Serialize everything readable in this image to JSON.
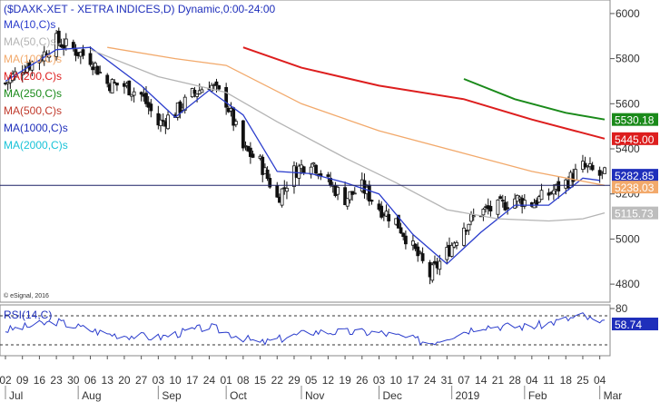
{
  "chart_data": [
    {
      "type": "candlestick",
      "title": "($DAXK-XET - XETRA INDICES,D) Dynamic,0:00-24:00",
      "copyright": "© eSignal, 2016",
      "ylim": [
        4720,
        6060
      ],
      "yticks": [
        4800,
        5000,
        5200,
        5400,
        5600,
        5800,
        6000
      ],
      "xlim": [
        "2018-07-02",
        "2019-03-06"
      ],
      "x_tick_labels": [
        "02",
        "09",
        "16",
        "23",
        "30",
        "06",
        "13",
        "20",
        "27",
        "03",
        "10",
        "17",
        "24",
        "01",
        "08",
        "15",
        "22",
        "29",
        "05",
        "12",
        "19",
        "26",
        "03",
        "10",
        "17",
        "24",
        "31",
        "07",
        "14",
        "21",
        "28",
        "04",
        "11",
        "18",
        "25",
        "04"
      ],
      "x_tick_dates": [
        "2018-07-02",
        "2018-07-09",
        "2018-07-16",
        "2018-07-23",
        "2018-07-30",
        "2018-08-06",
        "2018-08-13",
        "2018-08-20",
        "2018-08-27",
        "2018-09-03",
        "2018-09-10",
        "2018-09-17",
        "2018-09-24",
        "2018-10-01",
        "2018-10-08",
        "2018-10-15",
        "2018-10-22",
        "2018-10-29",
        "2018-11-05",
        "2018-11-12",
        "2018-11-19",
        "2018-11-26",
        "2018-12-03",
        "2018-12-10",
        "2018-12-17",
        "2018-12-24",
        "2018-12-31",
        "2019-01-07",
        "2019-01-14",
        "2019-01-21",
        "2019-01-28",
        "2019-02-04",
        "2019-02-11",
        "2019-02-18",
        "2019-02-25",
        "2019-03-04"
      ],
      "month_labels": [
        {
          "label": "Jul",
          "date": "2018-07-02"
        },
        {
          "label": "Aug",
          "date": "2018-08-01"
        },
        {
          "label": "Sep",
          "date": "2018-09-03"
        },
        {
          "label": "Oct",
          "date": "2018-10-01"
        },
        {
          "label": "Nov",
          "date": "2018-11-01"
        },
        {
          "label": "Dec",
          "date": "2018-12-03"
        },
        {
          "label": "2019",
          "date": "2019-01-02"
        },
        {
          "label": "Feb",
          "date": "2019-02-01"
        },
        {
          "label": "Mar",
          "date": "2019-03-04"
        }
      ],
      "weekly_close_path": [
        {
          "date": "2018-07-02",
          "value": 5690
        },
        {
          "date": "2018-07-09",
          "value": 5760
        },
        {
          "date": "2018-07-16",
          "value": 5800
        },
        {
          "date": "2018-07-23",
          "value": 5880
        },
        {
          "date": "2018-07-30",
          "value": 5840
        },
        {
          "date": "2018-08-06",
          "value": 5800
        },
        {
          "date": "2018-08-13",
          "value": 5690
        },
        {
          "date": "2018-08-20",
          "value": 5680
        },
        {
          "date": "2018-08-27",
          "value": 5640
        },
        {
          "date": "2018-09-03",
          "value": 5510
        },
        {
          "date": "2018-09-10",
          "value": 5560
        },
        {
          "date": "2018-09-17",
          "value": 5640
        },
        {
          "date": "2018-09-24",
          "value": 5690
        },
        {
          "date": "2018-10-01",
          "value": 5610
        },
        {
          "date": "2018-10-08",
          "value": 5400
        },
        {
          "date": "2018-10-15",
          "value": 5340
        },
        {
          "date": "2018-10-22",
          "value": 5180
        },
        {
          "date": "2018-10-29",
          "value": 5300
        },
        {
          "date": "2018-11-05",
          "value": 5350
        },
        {
          "date": "2018-11-12",
          "value": 5250
        },
        {
          "date": "2018-11-19",
          "value": 5180
        },
        {
          "date": "2018-11-26",
          "value": 5230
        },
        {
          "date": "2018-12-03",
          "value": 5140
        },
        {
          "date": "2018-12-10",
          "value": 5080
        },
        {
          "date": "2018-12-17",
          "value": 4960
        },
        {
          "date": "2018-12-24",
          "value": 4840
        },
        {
          "date": "2018-12-31",
          "value": 4940
        },
        {
          "date": "2019-01-07",
          "value": 5060
        },
        {
          "date": "2019-01-14",
          "value": 5120
        },
        {
          "date": "2019-01-21",
          "value": 5140
        },
        {
          "date": "2019-01-28",
          "value": 5180
        },
        {
          "date": "2019-02-04",
          "value": 5160
        },
        {
          "date": "2019-02-11",
          "value": 5200
        },
        {
          "date": "2019-02-18",
          "value": 5250
        },
        {
          "date": "2019-02-25",
          "value": 5320
        },
        {
          "date": "2019-03-04",
          "value": 5283
        }
      ],
      "series": [
        {
          "name": "MA(10,C)s",
          "color": "#2a3ccc",
          "points": [
            {
              "date": "2018-07-02",
              "value": 5700
            },
            {
              "date": "2018-07-23",
              "value": 5840
            },
            {
              "date": "2018-08-06",
              "value": 5850
            },
            {
              "date": "2018-08-27",
              "value": 5680
            },
            {
              "date": "2018-09-10",
              "value": 5540
            },
            {
              "date": "2018-09-24",
              "value": 5660
            },
            {
              "date": "2018-10-08",
              "value": 5550
            },
            {
              "date": "2018-10-22",
              "value": 5300
            },
            {
              "date": "2018-11-05",
              "value": 5290
            },
            {
              "date": "2018-11-19",
              "value": 5250
            },
            {
              "date": "2018-12-03",
              "value": 5200
            },
            {
              "date": "2018-12-17",
              "value": 5020
            },
            {
              "date": "2018-12-31",
              "value": 4890
            },
            {
              "date": "2019-01-14",
              "value": 5030
            },
            {
              "date": "2019-01-28",
              "value": 5150
            },
            {
              "date": "2019-02-11",
              "value": 5150
            },
            {
              "date": "2019-02-25",
              "value": 5270
            },
            {
              "date": "2019-03-04",
              "value": 5260
            }
          ]
        },
        {
          "name": "MA(50,C)s",
          "color": "#b4b4b4",
          "points": [
            {
              "date": "2018-08-06",
              "value": 5840
            },
            {
              "date": "2018-09-03",
              "value": 5720
            },
            {
              "date": "2018-10-01",
              "value": 5650
            },
            {
              "date": "2018-10-22",
              "value": 5520
            },
            {
              "date": "2018-11-19",
              "value": 5360
            },
            {
              "date": "2018-12-10",
              "value": 5250
            },
            {
              "date": "2018-12-31",
              "value": 5130
            },
            {
              "date": "2019-01-21",
              "value": 5090
            },
            {
              "date": "2019-02-11",
              "value": 5080
            },
            {
              "date": "2019-02-25",
              "value": 5090
            },
            {
              "date": "2019-03-06",
              "value": 5116
            }
          ]
        },
        {
          "name": "MA(100,C)s",
          "color": "#f2a96b",
          "points": [
            {
              "date": "2018-08-13",
              "value": 5850
            },
            {
              "date": "2018-09-10",
              "value": 5800
            },
            {
              "date": "2018-10-01",
              "value": 5770
            },
            {
              "date": "2018-11-01",
              "value": 5600
            },
            {
              "date": "2018-12-03",
              "value": 5480
            },
            {
              "date": "2019-01-07",
              "value": 5380
            },
            {
              "date": "2019-02-04",
              "value": 5300
            },
            {
              "date": "2019-03-06",
              "value": 5238
            }
          ]
        },
        {
          "name": "MA(200,C)s",
          "color": "#dd1e1e",
          "points": [
            {
              "date": "2018-10-08",
              "value": 5850
            },
            {
              "date": "2018-11-01",
              "value": 5760
            },
            {
              "date": "2018-12-03",
              "value": 5680
            },
            {
              "date": "2019-01-07",
              "value": 5620
            },
            {
              "date": "2019-02-04",
              "value": 5530
            },
            {
              "date": "2019-03-06",
              "value": 5445
            }
          ]
        },
        {
          "name": "MA(250,C)s",
          "color": "#1a8a1a",
          "points": [
            {
              "date": "2019-01-07",
              "value": 5710
            },
            {
              "date": "2019-01-28",
              "value": 5620
            },
            {
              "date": "2019-02-18",
              "value": 5560
            },
            {
              "date": "2019-03-06",
              "value": 5530
            }
          ]
        },
        {
          "name": "MA(500,C)s",
          "color": "#c0392b",
          "points": []
        },
        {
          "name": "MA(1000,C)s",
          "color": "#1f2fbb",
          "points": []
        },
        {
          "name": "MA(2000,C)s",
          "color": "#19c3d8",
          "points": []
        }
      ],
      "hline": {
        "value": 5238,
        "color": "#1d2166"
      },
      "price_markers": [
        {
          "value": 5530.18,
          "label": "5530.18",
          "bg": "#1a8a1a",
          "fg": "#ffffff"
        },
        {
          "value": 5445.0,
          "label": "5445.00",
          "bg": "#dd1e1e",
          "fg": "#ffffff"
        },
        {
          "value": 5282.85,
          "label": "5282.85",
          "bg": "#1f2fbb",
          "fg": "#ffffff"
        },
        {
          "value": 5238.03,
          "label": "5238.03",
          "bg": "#f2a96b",
          "fg": "#ffffff"
        },
        {
          "value": 5115.73,
          "label": "5115.73",
          "bg": "#bdbdbd",
          "fg": "#ffffff"
        }
      ]
    },
    {
      "type": "line",
      "title": "RSI(14,C)",
      "ylim": [
        15,
        85
      ],
      "yticks": [
        80
      ],
      "reference_lines": [
        70,
        30
      ],
      "series": [
        {
          "name": "RSI(14,C)",
          "color": "#2a3ccc",
          "points": [
            {
              "date": "2018-07-02",
              "value": 50
            },
            {
              "date": "2018-07-23",
              "value": 62
            },
            {
              "date": "2018-08-13",
              "value": 45
            },
            {
              "date": "2018-09-03",
              "value": 40
            },
            {
              "date": "2018-09-24",
              "value": 55
            },
            {
              "date": "2018-10-15",
              "value": 32
            },
            {
              "date": "2018-11-05",
              "value": 48
            },
            {
              "date": "2018-12-03",
              "value": 47
            },
            {
              "date": "2018-12-24",
              "value": 33
            },
            {
              "date": "2019-01-14",
              "value": 56
            },
            {
              "date": "2019-02-04",
              "value": 55
            },
            {
              "date": "2019-02-25",
              "value": 70
            },
            {
              "date": "2019-03-04",
              "value": 58.74
            }
          ]
        }
      ],
      "value_marker": {
        "value": 58.74,
        "label": "58.74",
        "bg": "#1f2fbb",
        "fg": "#ffffff"
      }
    }
  ]
}
